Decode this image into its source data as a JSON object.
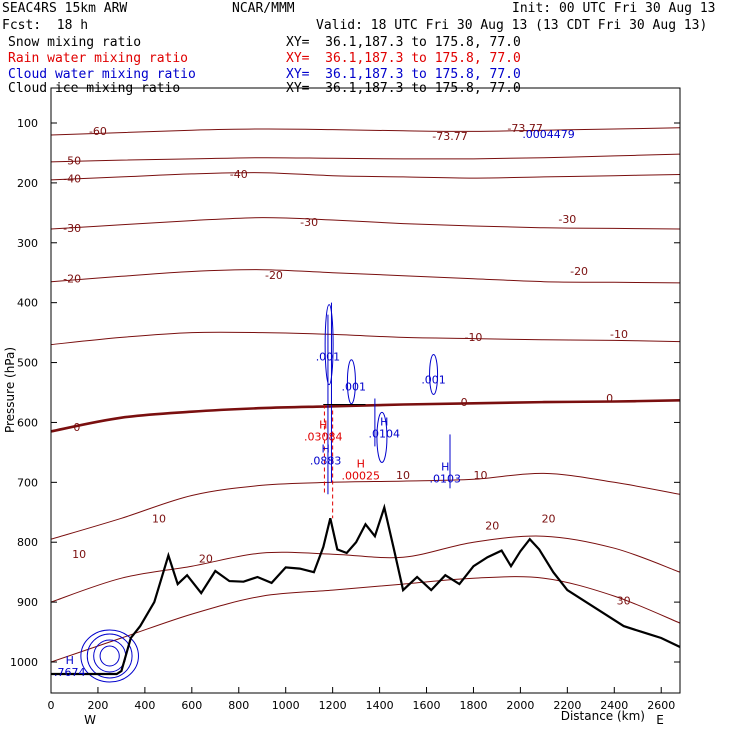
{
  "header": {
    "model": "SEAC4RS 15km ARW",
    "center": "NCAR/MMM",
    "init": "Init: 00 UTC Fri 30 Aug 13",
    "fcst": "Fcst:  18 h",
    "valid": "Valid: 18 UTC Fri 30 Aug 13 (13 CDT Fri 30 Aug 13)",
    "fields": [
      {
        "label": "Snow mixing ratio",
        "xy": "XY=  36.1,187.3 to 175.8, 77.0",
        "color": "#000000"
      },
      {
        "label": "Rain water mixing ratio",
        "xy": "XY=  36.1,187.3 to 175.8, 77.0",
        "color": "#e00000"
      },
      {
        "label": "Cloud water mixing ratio",
        "xy": "XY=  36.1,187.3 to 175.8, 77.0",
        "color": "#0000cc"
      },
      {
        "label": "Cloud ice mixing ratio",
        "xy": "XY=  36.1,187.3 to 175.8, 77.0",
        "color": "#000000"
      }
    ]
  },
  "chart_data": {
    "type": "cross-section",
    "xlabel": "Distance (km)",
    "ylabel": "Pressure (hPa)",
    "xlim": [
      0,
      2680
    ],
    "ylim": [
      1030,
      100
    ],
    "xticks": [
      0,
      200,
      400,
      600,
      800,
      1000,
      1200,
      1400,
      1600,
      1800,
      2000,
      2200,
      2400,
      2600
    ],
    "yticks": [
      100,
      200,
      300,
      400,
      500,
      600,
      700,
      800,
      900,
      1000
    ],
    "endpoints": {
      "left": "W",
      "right": "E"
    },
    "colors": {
      "temperature": "#7a0f0f",
      "freezing": "#7a0f0f",
      "terrain": "#000000",
      "rain": "#e00000",
      "cloud": "#0000cc"
    },
    "temperature_isotherms": [
      {
        "t": -60,
        "p": [
          120,
          116,
          112,
          110,
          111,
          113,
          114,
          112,
          110,
          108
        ]
      },
      {
        "t": -50,
        "p": [
          165,
          162,
          160,
          158,
          159,
          160,
          160,
          158,
          155,
          152
        ]
      },
      {
        "t": -40,
        "p": [
          195,
          190,
          185,
          183,
          188,
          190,
          192,
          190,
          188,
          186
        ]
      },
      {
        "t": -30,
        "p": [
          277,
          270,
          263,
          258,
          262,
          268,
          272,
          275,
          276,
          277
        ]
      },
      {
        "t": -20,
        "p": [
          365,
          356,
          348,
          345,
          350,
          355,
          360,
          365,
          366,
          367
        ]
      },
      {
        "t": -10,
        "p": [
          470,
          458,
          450,
          450,
          453,
          458,
          460,
          462,
          463,
          465
        ]
      },
      {
        "t": 0,
        "p": [
          615,
          592,
          582,
          576,
          573,
          570,
          568,
          566,
          565,
          563
        ]
      },
      {
        "t": 10,
        "p": [
          795,
          760,
          722,
          705,
          700,
          698,
          695,
          685,
          700,
          720
        ]
      },
      {
        "t": 20,
        "p": [
          900,
          860,
          840,
          818,
          820,
          825,
          800,
          790,
          810,
          850
        ]
      },
      {
        "t": 30,
        "p": [
          1000,
          960,
          920,
          890,
          880,
          870,
          860,
          860,
          890,
          935
        ]
      }
    ],
    "iso_x": [
      0,
      300,
      600,
      900,
      1200,
      1500,
      1800,
      2100,
      2400,
      2680
    ],
    "contour_labels": [
      {
        "text": "-60",
        "x": 200,
        "p": 113
      },
      {
        "text": "-50",
        "x": 90,
        "p": 163
      },
      {
        "text": "-40",
        "x": 90,
        "p": 193
      },
      {
        "text": "-40",
        "x": 800,
        "p": 185
      },
      {
        "text": "-30",
        "x": 90,
        "p": 275
      },
      {
        "text": "-30",
        "x": 1100,
        "p": 265
      },
      {
        "text": "-30",
        "x": 2200,
        "p": 260
      },
      {
        "text": "-20",
        "x": 90,
        "p": 360
      },
      {
        "text": "-20",
        "x": 950,
        "p": 354
      },
      {
        "text": "-20",
        "x": 2250,
        "p": 347
      },
      {
        "text": "-10",
        "x": 1800,
        "p": 457
      },
      {
        "text": "-10",
        "x": 2420,
        "p": 452
      },
      {
        "text": "0",
        "x": 110,
        "p": 608
      },
      {
        "text": "0",
        "x": 1760,
        "p": 566
      },
      {
        "text": "0",
        "x": 2380,
        "p": 559
      },
      {
        "text": "10",
        "x": 460,
        "p": 760
      },
      {
        "text": "10",
        "x": 1500,
        "p": 688
      },
      {
        "text": "10",
        "x": 1830,
        "p": 688
      },
      {
        "text": "20",
        "x": 660,
        "p": 827
      },
      {
        "text": "20",
        "x": 1880,
        "p": 772
      },
      {
        "text": "20",
        "x": 2120,
        "p": 760
      },
      {
        "text": "10",
        "x": 120,
        "p": 820
      },
      {
        "text": "30",
        "x": 2440,
        "p": 897
      },
      {
        "text": "-73.77",
        "x": 1700,
        "p": 122
      },
      {
        "text": "-73.77",
        "x": 2020,
        "p": 108
      }
    ],
    "terrain": {
      "x": [
        0,
        280,
        300,
        340,
        380,
        440,
        500,
        540,
        580,
        640,
        700,
        760,
        820,
        880,
        940,
        1000,
        1060,
        1120,
        1160,
        1190,
        1220,
        1260,
        1300,
        1340,
        1380,
        1420,
        1460,
        1500,
        1560,
        1620,
        1680,
        1740,
        1800,
        1860,
        1920,
        1960,
        2000,
        2040,
        2080,
        2140,
        2200,
        2280,
        2360,
        2440,
        2520,
        2600,
        2680
      ],
      "p": [
        1020,
        1020,
        1015,
        960,
        940,
        900,
        822,
        870,
        855,
        885,
        848,
        865,
        866,
        858,
        868,
        842,
        844,
        850,
        808,
        760,
        812,
        818,
        800,
        770,
        790,
        742,
        810,
        880,
        858,
        880,
        855,
        870,
        840,
        825,
        814,
        840,
        815,
        795,
        812,
        850,
        880,
        900,
        920,
        940,
        950,
        960,
        975
      ]
    },
    "highs": [
      {
        "label": "H",
        "value": ".7674",
        "x": 80,
        "p": 1003,
        "series": "cloud"
      },
      {
        "label": "H",
        "value": ".03084",
        "x": 1160,
        "p": 610,
        "series": "rain"
      },
      {
        "label": "H",
        "value": ".0883",
        "x": 1170,
        "p": 650,
        "series": "cloud"
      },
      {
        "label": "H",
        "value": ".00025",
        "x": 1320,
        "p": 675,
        "series": "rain"
      },
      {
        "label": "H",
        "value": ".0104",
        "x": 1420,
        "p": 605,
        "series": "cloud"
      },
      {
        "label": "H",
        "value": ".0103",
        "x": 1680,
        "p": 680,
        "series": "cloud"
      }
    ],
    "value_labels": [
      {
        "text": ".001",
        "x": 1180,
        "p": 490,
        "series": "cloud"
      },
      {
        "text": ".001",
        "x": 1290,
        "p": 540,
        "series": "cloud"
      },
      {
        "text": ".001",
        "x": 1630,
        "p": 528,
        "series": "cloud"
      },
      {
        "text": ".0004479",
        "x": 2120,
        "p": 118,
        "series": "cloud"
      }
    ]
  }
}
